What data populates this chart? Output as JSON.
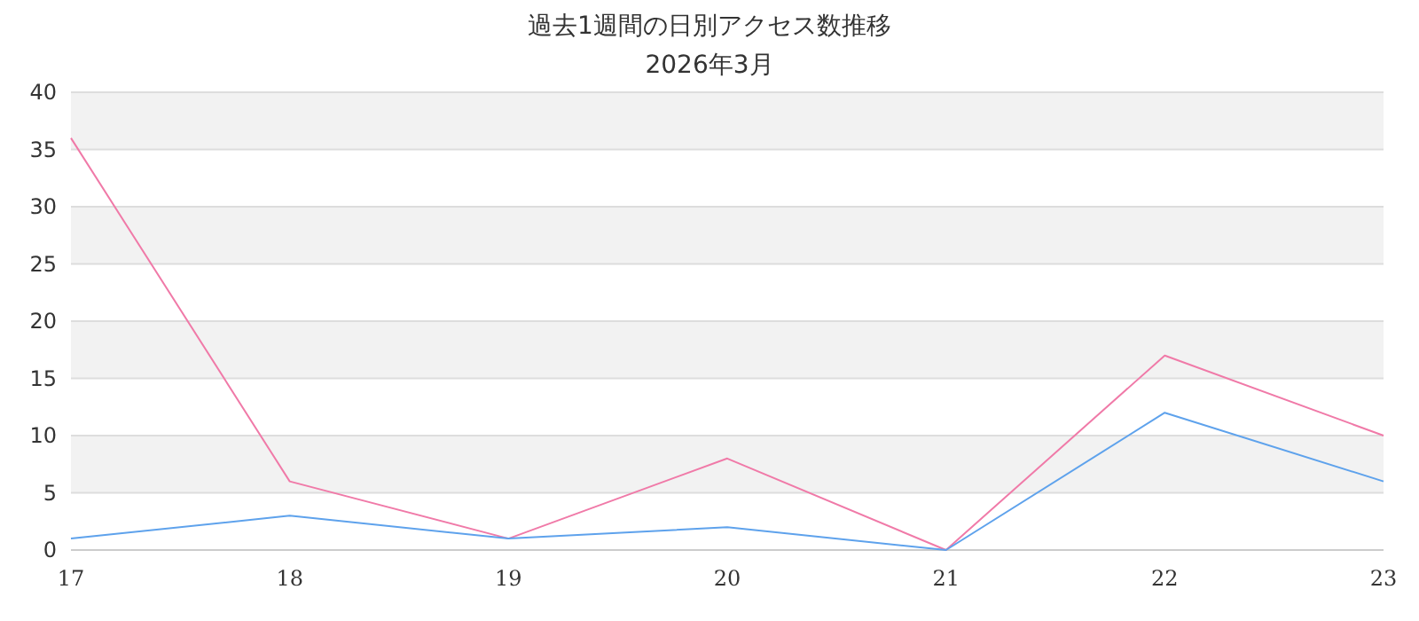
{
  "chart_data": {
    "type": "line",
    "title": "過去1週間の日別アクセス数推移",
    "subtitle": "2026年3月",
    "categories": [
      "17",
      "18",
      "19",
      "20",
      "21",
      "22",
      "23"
    ],
    "series": [
      {
        "color": "#f07aa8",
        "values": [
          36,
          6,
          1,
          8,
          0,
          17,
          10
        ]
      },
      {
        "color": "#5ea2ec",
        "values": [
          1,
          3,
          1,
          2,
          0,
          12,
          6
        ]
      }
    ],
    "ylim": [
      0,
      40
    ],
    "yticks": [
      0,
      5,
      10,
      15,
      20,
      25,
      30,
      35,
      40
    ],
    "grid": "y",
    "bands": [
      {
        "axis": "y",
        "from": 5,
        "to": 10,
        "color": "#f2f2f2"
      },
      {
        "axis": "y",
        "from": 15,
        "to": 20,
        "color": "#f2f2f2"
      },
      {
        "axis": "y",
        "from": 25,
        "to": 30,
        "color": "#f2f2f2"
      },
      {
        "axis": "y",
        "from": 35,
        "to": 40,
        "color": "#f2f2f2"
      }
    ]
  }
}
